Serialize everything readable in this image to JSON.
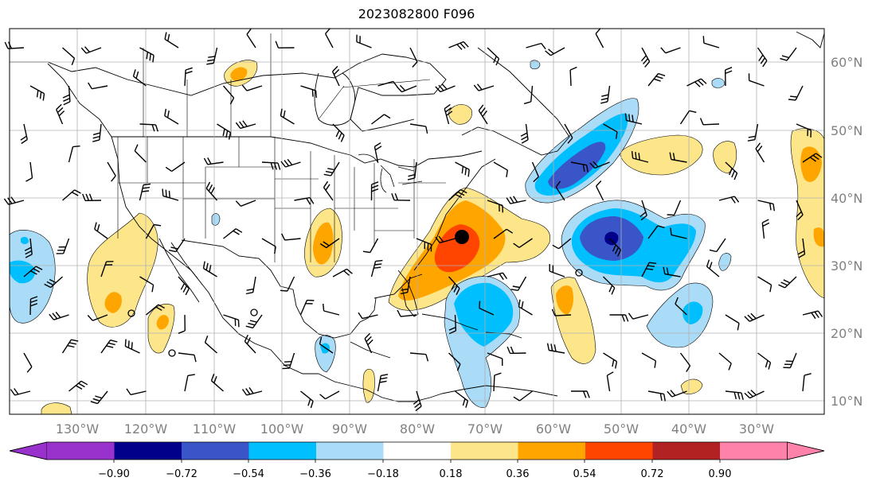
{
  "title": "2023082800 F096",
  "map": {
    "lon_labels": [
      "130°W",
      "120°W",
      "110°W",
      "100°W",
      "90°W",
      "80°W",
      "70°W",
      "60°W",
      "50°W",
      "40°W",
      "30°W"
    ],
    "lat_labels": [
      "60°N",
      "50°N",
      "40°N",
      "30°N",
      "20°N",
      "10°N"
    ],
    "tick_label_color": "#808080",
    "gridline_color": "#b0b0b0"
  },
  "colorbar": {
    "tick_labels": [
      "−0.90",
      "−0.72",
      "−0.54",
      "−0.36",
      "−0.18",
      "0.18",
      "0.36",
      "0.54",
      "0.72",
      "0.90"
    ],
    "colors": [
      "#9932cc",
      "#00008b",
      "#3a55c8",
      "#00bfff",
      "#aadcf8",
      "#ffffff",
      "#fde68a",
      "#ffa500",
      "#ff4500",
      "#b22222",
      "#ff82ab"
    ],
    "extend": "both"
  },
  "colors": {
    "pos_weak": "#fde68a",
    "pos_mid": "#ffa500",
    "pos_strong": "#ff4500",
    "neg_weak": "#aadcf8",
    "neg_mid": "#00bfff",
    "neg_strong": "#3a55c8",
    "neg_extreme": "#00008b",
    "storm_marker": "#000000"
  },
  "storm_marker": {
    "lon": -74.5,
    "lat": 34.5
  }
}
